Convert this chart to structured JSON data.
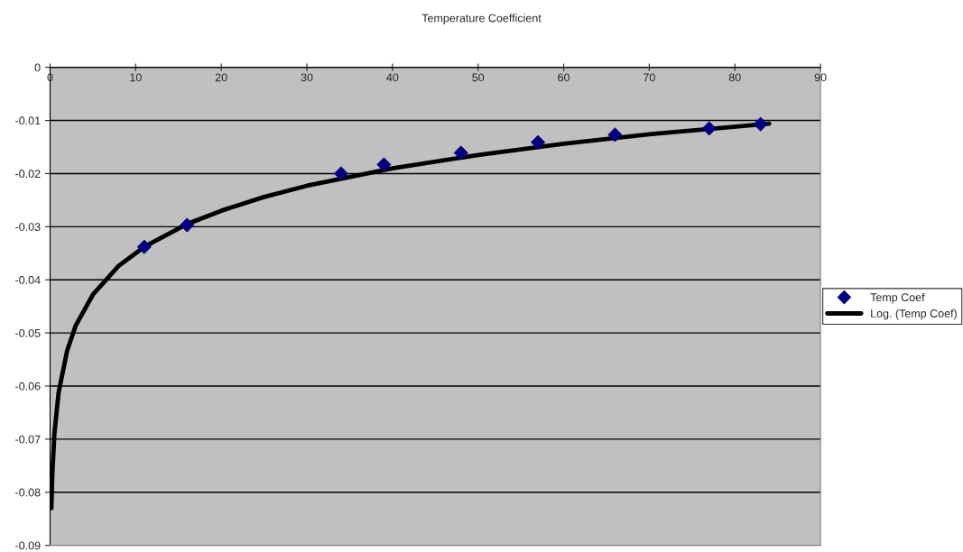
{
  "chart_data": {
    "type": "scatter",
    "title": "Temperature Coefficient",
    "xlim": [
      0,
      90
    ],
    "xticks": [
      0,
      10,
      20,
      30,
      40,
      50,
      60,
      70,
      80,
      90
    ],
    "ylim": [
      -0.09,
      0
    ],
    "yticks": [
      0,
      -0.01,
      -0.02,
      -0.03,
      -0.04,
      -0.05,
      -0.06,
      -0.07,
      -0.08,
      -0.09
    ],
    "grid": "y",
    "legend": "right",
    "series": [
      {
        "name": "Temp Coef",
        "marker": "diamond",
        "color": "#000080",
        "x": [
          11,
          16,
          34,
          39,
          48,
          57,
          66,
          77,
          83
        ],
        "values": [
          -0.0338,
          -0.0297,
          -0.02,
          -0.0183,
          -0.0161,
          -0.0141,
          -0.0127,
          -0.0115,
          -0.0107
        ]
      },
      {
        "name": "Log. (Temp Coef)",
        "type": "line",
        "marker": "none",
        "line_style": "solid",
        "color": "#000000",
        "x": [
          0.15,
          0.25,
          0.5,
          1,
          2,
          3,
          5,
          8,
          11,
          16,
          20,
          25,
          30,
          40,
          50,
          60,
          70,
          84
        ],
        "values": [
          -0.083,
          -0.077,
          -0.0691,
          -0.0612,
          -0.0533,
          -0.0486,
          -0.0428,
          -0.0374,
          -0.0338,
          -0.0295,
          -0.027,
          -0.0244,
          -0.0223,
          -0.019,
          -0.0165,
          -0.0144,
          -0.0126,
          -0.0106
        ]
      }
    ]
  }
}
